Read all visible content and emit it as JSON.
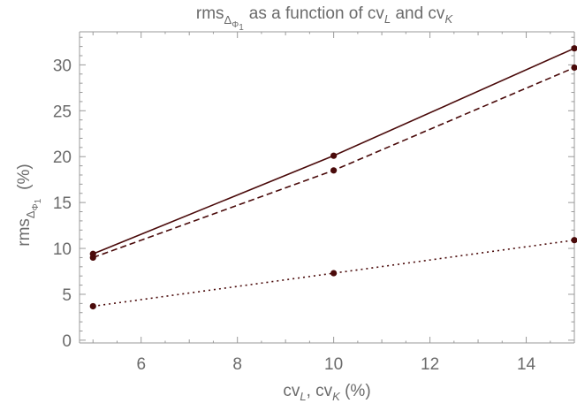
{
  "chart_data": {
    "type": "line",
    "title": {
      "prefix": "rms",
      "sub": "Δ",
      "subsub": "Φ",
      "subsubsub": "1",
      "suffix_a": "as a function of cv",
      "suffix_a_sub": "L",
      "suffix_b": " and cv",
      "suffix_b_sub": "K"
    },
    "xlabel": {
      "a": "cv",
      "a_sub": "L",
      "b": ", cv",
      "b_sub": "K",
      "c": " (%)"
    },
    "ylabel": {
      "main": "rms",
      "sub": "Δ",
      "subsub": "Φ",
      "subsubsub": "1",
      "suffix": "(%)"
    },
    "xlim": [
      4.72,
      15.0
    ],
    "ylim": [
      -0.3,
      33.6
    ],
    "xticks": [
      6,
      8,
      10,
      12,
      14
    ],
    "yticks": [
      0,
      5,
      10,
      15,
      20,
      25,
      30
    ],
    "grid": false,
    "color": "#4a0a0a",
    "series": [
      {
        "style": "solid",
        "x": [
          5,
          10,
          15
        ],
        "values": [
          9.4,
          20.1,
          31.8
        ]
      },
      {
        "style": "dashed",
        "x": [
          5,
          10,
          15
        ],
        "values": [
          9.0,
          18.5,
          29.7
        ]
      },
      {
        "style": "dotted",
        "x": [
          5,
          10,
          15
        ],
        "values": [
          3.7,
          7.3,
          10.9
        ]
      }
    ]
  }
}
